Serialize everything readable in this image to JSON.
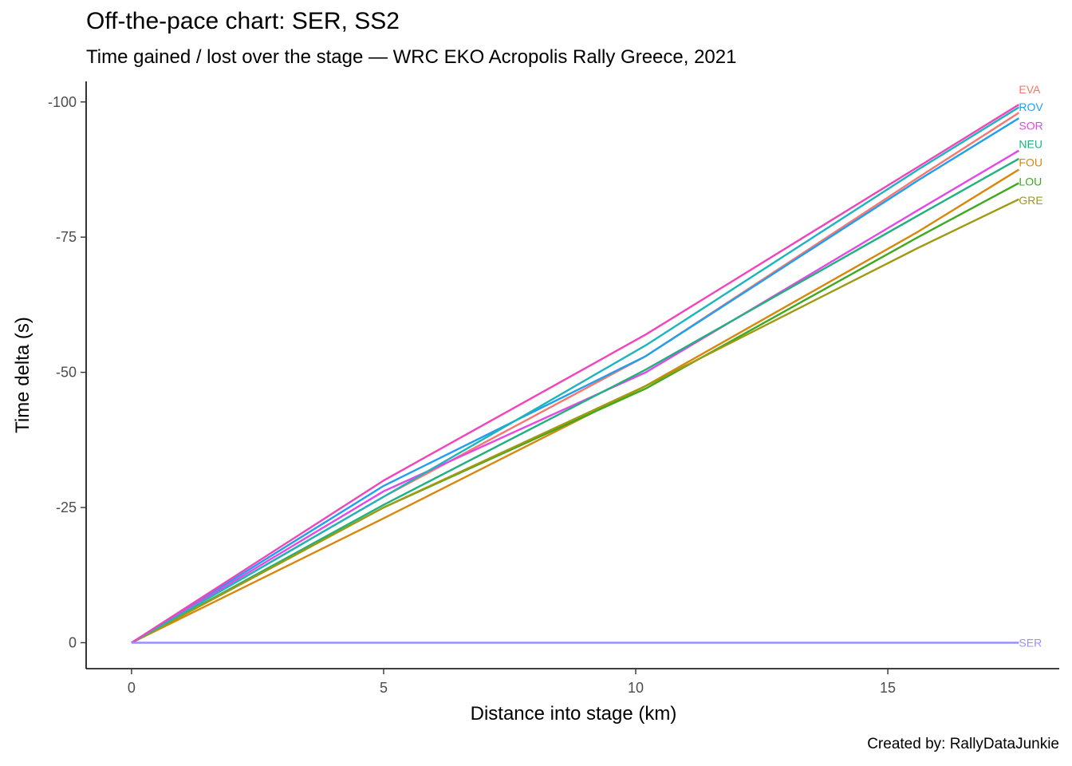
{
  "chart_data": {
    "type": "line",
    "title": "Off-the-pace chart: SER, SS2",
    "subtitle": "Time gained / lost over the stage — WRC EKO Acropolis Rally Greece, 2021",
    "caption": "Created by: RallyDataJunkie",
    "xlabel": "Distance into stage (km)",
    "ylabel": "Time delta (s)",
    "xlim": [
      -0.9,
      18.4
    ],
    "ylim": [
      4.8,
      -103.8
    ],
    "y_reversed": true,
    "x_ticks": [
      0,
      5,
      10,
      15
    ],
    "x_tick_labels": [
      "0",
      "5",
      "10",
      "15"
    ],
    "y_ticks": [
      0,
      -25,
      -50,
      -75,
      -100
    ],
    "y_tick_labels": [
      "0",
      "-25",
      "-50",
      "-75",
      "-100"
    ],
    "grid": false,
    "legend": "none",
    "series": [
      {
        "name": "EVA",
        "color": "#F8766D",
        "label_y": -102.3,
        "x": [
          0,
          5,
          10.2,
          15.6,
          17.6
        ],
        "y": [
          0,
          -27,
          -53,
          -86,
          -98
        ]
      },
      {
        "name": "ROV",
        "color": "#1F9FEF",
        "label_y": -99.1,
        "x": [
          0,
          5,
          10.2,
          15.6,
          17.6
        ],
        "y": [
          0,
          -29,
          -53,
          -85.5,
          -97
        ]
      },
      {
        "name": "SOR",
        "color": "#E546E8",
        "label_y": -95.6,
        "x": [
          0,
          5,
          10.2,
          15.6,
          17.6
        ],
        "y": [
          0,
          -28,
          -50,
          -80,
          -91
        ]
      },
      {
        "name": "NEU",
        "color": "#1FB27F",
        "label_y": -92.2,
        "x": [
          0,
          5,
          10.2,
          15.6,
          17.6
        ],
        "y": [
          0,
          -25.5,
          -50.5,
          -79,
          -89.5
        ]
      },
      {
        "name": "FOU",
        "color": "#D8870A",
        "label_y": -88.8,
        "x": [
          0,
          5,
          10.2,
          15.6,
          17.6
        ],
        "y": [
          0,
          -23,
          -47.5,
          -76,
          -87.5
        ]
      },
      {
        "name": "LOU",
        "color": "#3BAA1F",
        "label_y": -85.3,
        "x": [
          0,
          5,
          10.2,
          15.6,
          17.6
        ],
        "y": [
          0,
          -25,
          -47,
          -75,
          -85
        ]
      },
      {
        "name": "GRE",
        "color": "#A09A11",
        "label_y": -81.8,
        "x": [
          0,
          5,
          10.2,
          15.6,
          17.6
        ],
        "y": [
          0,
          -25,
          -47.5,
          -73,
          -82
        ]
      },
      {
        "name": "",
        "color": "#1CB5BD",
        "x": [
          0,
          5,
          10.2,
          15.6,
          17.6
        ],
        "y": [
          0,
          -27,
          -55,
          -87.5,
          -99
        ]
      },
      {
        "name": "",
        "color": "#F243BA",
        "x": [
          0,
          5,
          10.2,
          15.6,
          17.6
        ],
        "y": [
          0,
          -30,
          -57,
          -88,
          -99.5
        ]
      },
      {
        "name": "SER",
        "color": "#9590FF",
        "label_y": 0,
        "x": [
          0,
          17.6
        ],
        "y": [
          0,
          0
        ]
      }
    ]
  }
}
